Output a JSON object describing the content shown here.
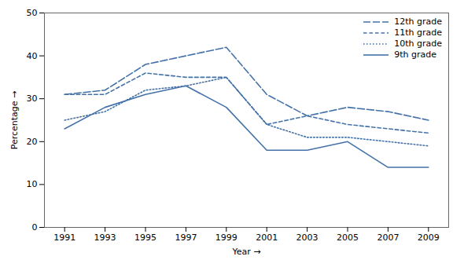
{
  "chart_data": {
    "type": "line",
    "xlabel": "Year",
    "ylabel": "Percentage",
    "x": [
      1991,
      1993,
      1995,
      1997,
      1999,
      2001,
      2003,
      2005,
      2007,
      2009
    ],
    "series": [
      {
        "name": "12th grade",
        "color": "#4472a8",
        "line_style": "long_dash",
        "values": [
          31,
          32,
          38,
          40,
          42,
          31,
          26,
          28,
          27,
          25
        ]
      },
      {
        "name": "11th grade",
        "color": "#4472a8",
        "line_style": "short_dash",
        "values": [
          31,
          31,
          36,
          35,
          35,
          24,
          26,
          24,
          23,
          22
        ]
      },
      {
        "name": "10th grade",
        "color": "#4472a8",
        "line_style": "dotted",
        "values": [
          25,
          27,
          32,
          33,
          35,
          24,
          21,
          21,
          20,
          19
        ]
      },
      {
        "name": "9th grade",
        "color": "#4472a8",
        "line_style": "solid",
        "values": [
          23,
          28,
          31,
          33,
          28,
          18,
          18,
          20,
          14,
          14
        ]
      }
    ],
    "xlim": [
      1990,
      2010
    ],
    "xticks": [
      1991,
      1993,
      1995,
      1997,
      1999,
      2001,
      2003,
      2005,
      2007,
      2009
    ],
    "ylim": [
      0,
      50
    ],
    "yticks": [
      0,
      10,
      20,
      30,
      40,
      50
    ],
    "legend": "upper right"
  }
}
